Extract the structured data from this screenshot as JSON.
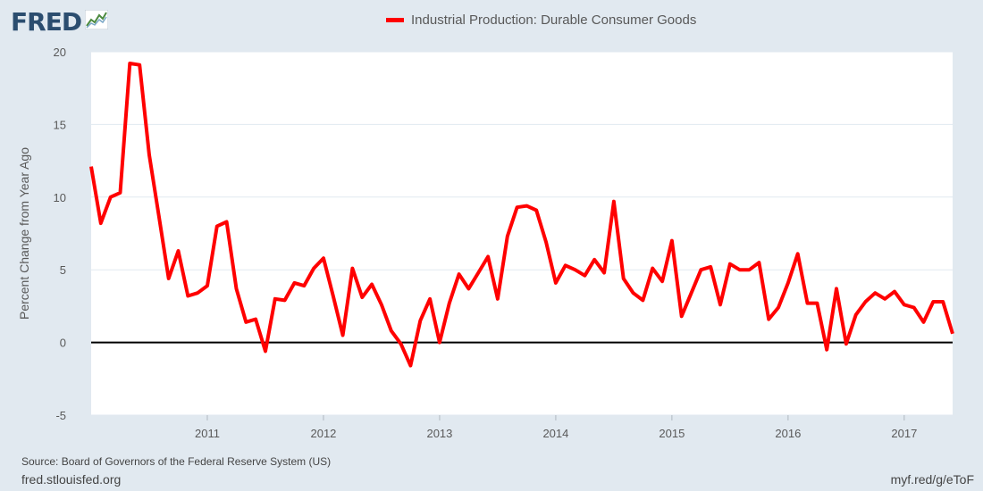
{
  "header": {
    "logo_text": "FRED",
    "logo_icon": "line-chart-icon"
  },
  "chart_data": {
    "type": "line",
    "title": "",
    "ylabel": "Percent Change from Year Ago",
    "xlabel": "",
    "ylim": [
      -5,
      20
    ],
    "xlim": [
      "2010-01",
      "2017-06"
    ],
    "yticks": [
      -5,
      0,
      5,
      10,
      15,
      20
    ],
    "xticks": [
      "2011",
      "2012",
      "2013",
      "2014",
      "2015",
      "2016",
      "2017"
    ],
    "grid": "horizontal",
    "legend_placement": "top-center",
    "zero_line": true,
    "series": [
      {
        "name": "Industrial Production: Durable Consumer Goods",
        "color": "#ff0000",
        "x": [
          "2010-01",
          "2010-02",
          "2010-03",
          "2010-04",
          "2010-05",
          "2010-06",
          "2010-07",
          "2010-08",
          "2010-09",
          "2010-10",
          "2010-11",
          "2010-12",
          "2011-01",
          "2011-02",
          "2011-03",
          "2011-04",
          "2011-05",
          "2011-06",
          "2011-07",
          "2011-08",
          "2011-09",
          "2011-10",
          "2011-11",
          "2011-12",
          "2012-01",
          "2012-02",
          "2012-03",
          "2012-04",
          "2012-05",
          "2012-06",
          "2012-07",
          "2012-08",
          "2012-09",
          "2012-10",
          "2012-11",
          "2012-12",
          "2013-01",
          "2013-02",
          "2013-03",
          "2013-04",
          "2013-05",
          "2013-06",
          "2013-07",
          "2013-08",
          "2013-09",
          "2013-10",
          "2013-11",
          "2013-12",
          "2014-01",
          "2014-02",
          "2014-03",
          "2014-04",
          "2014-05",
          "2014-06",
          "2014-07",
          "2014-08",
          "2014-09",
          "2014-10",
          "2014-11",
          "2014-12",
          "2015-01",
          "2015-02",
          "2015-03",
          "2015-04",
          "2015-05",
          "2015-06",
          "2015-07",
          "2015-08",
          "2015-09",
          "2015-10",
          "2015-11",
          "2015-12",
          "2016-01",
          "2016-02",
          "2016-03",
          "2016-04",
          "2016-05",
          "2016-06",
          "2016-07",
          "2016-08",
          "2016-09",
          "2016-10",
          "2016-11",
          "2016-12",
          "2017-01",
          "2017-02",
          "2017-03",
          "2017-04",
          "2017-05",
          "2017-06"
        ],
        "values": [
          12.1,
          8.2,
          10.0,
          10.3,
          19.2,
          19.1,
          12.9,
          8.7,
          4.4,
          6.3,
          3.2,
          3.4,
          3.9,
          8.0,
          8.3,
          3.7,
          1.4,
          1.6,
          -0.6,
          3.0,
          2.9,
          4.1,
          3.9,
          5.1,
          5.8,
          3.2,
          0.5,
          5.1,
          3.1,
          4.0,
          2.6,
          0.8,
          -0.1,
          -1.6,
          1.5,
          3.0,
          0.0,
          2.7,
          4.7,
          3.7,
          4.8,
          5.9,
          3.0,
          7.3,
          9.3,
          9.4,
          9.1,
          6.9,
          4.1,
          5.3,
          5.0,
          4.6,
          5.7,
          4.8,
          9.7,
          4.4,
          3.4,
          2.9,
          5.1,
          4.2,
          7.0,
          1.8,
          3.4,
          5.0,
          5.2,
          2.6,
          5.4,
          5.0,
          5.0,
          5.5,
          1.6,
          2.4,
          4.1,
          6.1,
          2.7,
          2.7,
          -0.5,
          3.7,
          -0.1,
          1.9,
          2.8,
          3.4,
          3.0,
          3.5,
          2.6,
          2.4,
          1.4,
          2.8,
          2.8,
          0.6
        ]
      }
    ]
  },
  "footer": {
    "source": "Source: Board of Governors of the Federal Reserve System (US)",
    "site": "fred.stlouisfed.org",
    "short_url": "myf.red/g/eToF"
  }
}
